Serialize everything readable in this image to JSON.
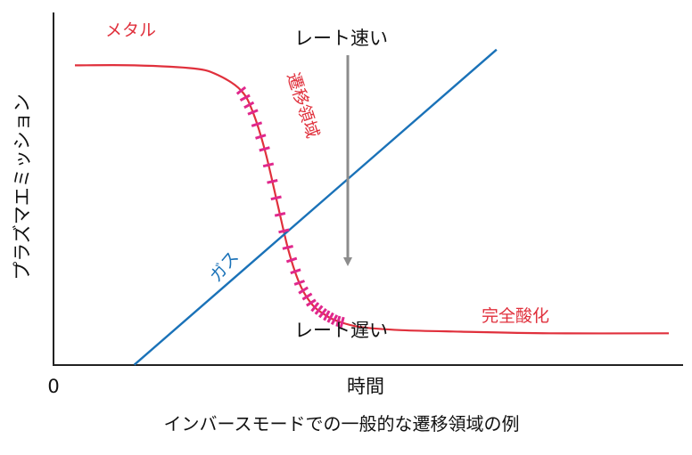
{
  "chart_data": {
    "type": "line",
    "title": "",
    "caption": "インバースモードでの一般的な遷移領域の例",
    "xlabel": "時間",
    "ylabel": "プラズマエミッション",
    "x_origin_label": "0",
    "grid": false,
    "series": [
      {
        "name": "メタル / 完全酸化",
        "role": "plasma-emission",
        "color": "#e0303c",
        "x": [
          0.0,
          0.1,
          0.2,
          0.24,
          0.28,
          0.3,
          0.32,
          0.34,
          0.36,
          0.38,
          0.4,
          0.42,
          0.44,
          0.48,
          0.55,
          0.65,
          0.8,
          1.0
        ],
        "y": [
          0.9,
          0.9,
          0.89,
          0.87,
          0.82,
          0.75,
          0.63,
          0.47,
          0.31,
          0.2,
          0.14,
          0.11,
          0.09,
          0.07,
          0.06,
          0.055,
          0.05,
          0.05
        ]
      },
      {
        "name": "ガス",
        "role": "gas",
        "color": "#1a72b8",
        "x": [
          0.1,
          0.71
        ],
        "y": [
          -0.05,
          0.95
        ]
      }
    ],
    "transition_region": {
      "label": "遷移領域",
      "x_start": 0.28,
      "x_end": 0.45,
      "color": "#e0288c"
    },
    "annotations": {
      "metal": "メタル",
      "full_oxidation": "完全酸化",
      "transition": "遷移領域",
      "gas": "ガス",
      "rate_fast": "レート速い",
      "rate_slow": "レート遅い"
    },
    "arrow": {
      "from_label": "レート速い",
      "to_label": "レート遅い",
      "color": "#8c8c8c"
    }
  }
}
